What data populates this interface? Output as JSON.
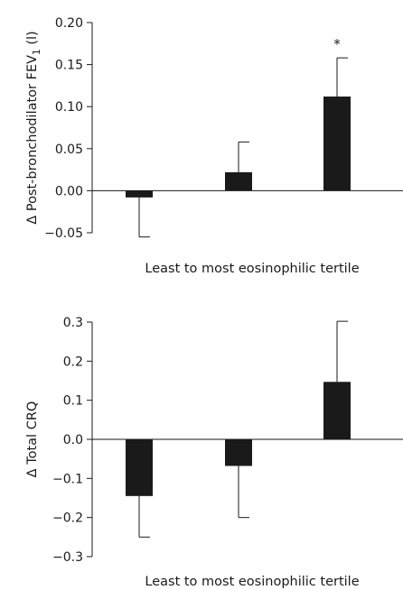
{
  "chart_data": [
    {
      "type": "bar",
      "categories": [
        "",
        "",
        ""
      ],
      "values": [
        -0.008,
        0.022,
        0.112
      ],
      "error_plus": [
        0.0,
        0.036,
        0.046
      ],
      "error_minus": [
        0.047,
        0.0,
        0.0
      ],
      "annotations": [
        "",
        "",
        "*"
      ],
      "ylabel_main": "Δ Post-bronchodilator FEV",
      "ylabel_sub": "1",
      "ylabel_unit": " (l)",
      "xlabel": "Least to most eosinophilic tertile",
      "ylim": [
        -0.05,
        0.2
      ],
      "yticks": [
        -0.05,
        0.0,
        0.05,
        0.1,
        0.15,
        0.2
      ],
      "ytick_labels": [
        "−0.05",
        "0.00",
        "0.05",
        "0.10",
        "0.15",
        "0.20"
      ],
      "grid": false,
      "bar_color": "#1a1a1a"
    },
    {
      "type": "bar",
      "categories": [
        "",
        "",
        ""
      ],
      "values": [
        -0.145,
        -0.068,
        0.147
      ],
      "error_plus": [
        0.0,
        0.0,
        0.155
      ],
      "error_minus": [
        0.105,
        0.132,
        0.0
      ],
      "annotations": [
        "",
        "",
        ""
      ],
      "ylabel_main": "Δ Total CRQ",
      "ylabel_sub": "",
      "ylabel_unit": "",
      "xlabel": "Least to most eosinophilic tertile",
      "ylim": [
        -0.3,
        0.3
      ],
      "yticks": [
        -0.3,
        -0.2,
        -0.1,
        0.0,
        0.1,
        0.2,
        0.3
      ],
      "ytick_labels": [
        "−0.3",
        "−0.2",
        "−0.1",
        "0.0",
        "0.1",
        "0.2",
        "0.3"
      ],
      "grid": false,
      "bar_color": "#1a1a1a"
    }
  ]
}
